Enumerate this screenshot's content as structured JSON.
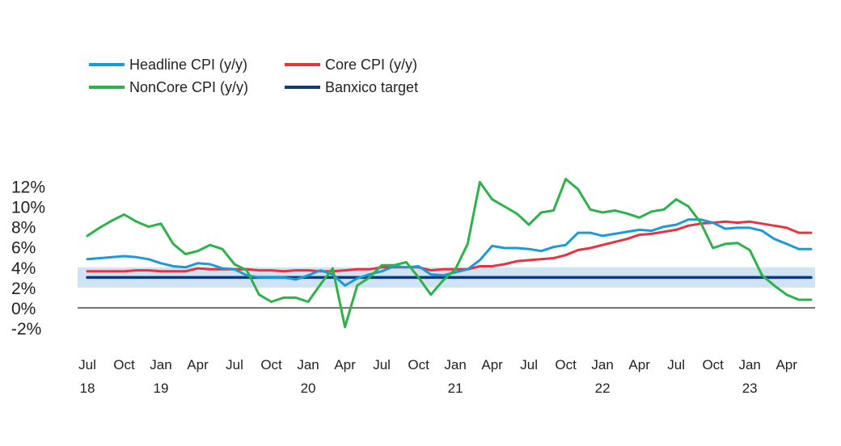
{
  "chart_data": {
    "type": "line",
    "title": "",
    "xlabel": "",
    "ylabel": "",
    "ylim": [
      -2,
      13
    ],
    "y_ticks": [
      "12%",
      "10%",
      "8%",
      "6%",
      "4%",
      "2%",
      "0%",
      "-2%"
    ],
    "x_tick_labels": [
      {
        "month": "Jul",
        "year": "18"
      },
      {
        "month": "Oct",
        "year": ""
      },
      {
        "month": "Jan",
        "year": "19"
      },
      {
        "month": "Apr",
        "year": ""
      },
      {
        "month": "Jul",
        "year": ""
      },
      {
        "month": "Oct",
        "year": ""
      },
      {
        "month": "Jan",
        "year": "20"
      },
      {
        "month": "Apr",
        "year": ""
      },
      {
        "month": "Jul",
        "year": ""
      },
      {
        "month": "Oct",
        "year": ""
      },
      {
        "month": "Jan",
        "year": "21"
      },
      {
        "month": "Apr",
        "year": ""
      },
      {
        "month": "Jul",
        "year": ""
      },
      {
        "month": "Oct",
        "year": ""
      },
      {
        "month": "Jan",
        "year": "22"
      },
      {
        "month": "Apr",
        "year": ""
      },
      {
        "month": "Jul",
        "year": ""
      },
      {
        "month": "Oct",
        "year": ""
      },
      {
        "month": "Jan",
        "year": "23"
      },
      {
        "month": "Apr",
        "year": ""
      }
    ],
    "x_dates": [
      "2018-07",
      "2018-08",
      "2018-09",
      "2018-10",
      "2018-11",
      "2018-12",
      "2019-01",
      "2019-02",
      "2019-03",
      "2019-04",
      "2019-05",
      "2019-06",
      "2019-07",
      "2019-08",
      "2019-09",
      "2019-10",
      "2019-11",
      "2019-12",
      "2020-01",
      "2020-02",
      "2020-03",
      "2020-04",
      "2020-05",
      "2020-06",
      "2020-07",
      "2020-08",
      "2020-09",
      "2020-10",
      "2020-11",
      "2020-12",
      "2021-01",
      "2021-02",
      "2021-03",
      "2021-04",
      "2021-05",
      "2021-06",
      "2021-07",
      "2021-08",
      "2021-09",
      "2021-10",
      "2021-11",
      "2021-12",
      "2022-01",
      "2022-02",
      "2022-03",
      "2022-04",
      "2022-05",
      "2022-06",
      "2022-07",
      "2022-08",
      "2022-09",
      "2022-10",
      "2022-11",
      "2022-12",
      "2023-01",
      "2023-02",
      "2023-03",
      "2023-04",
      "2023-05",
      "2023-06"
    ],
    "target_band": [
      2,
      4
    ],
    "target_line": 3,
    "series": [
      {
        "name": "Headline CPI (y/y)",
        "color": "#1a9ad6",
        "values": [
          4.8,
          4.9,
          5.0,
          5.1,
          5.0,
          4.8,
          4.4,
          4.1,
          4.0,
          4.4,
          4.3,
          3.9,
          3.8,
          3.2,
          3.0,
          3.0,
          3.0,
          2.8,
          3.2,
          3.7,
          3.3,
          2.2,
          2.9,
          3.3,
          3.6,
          4.1,
          4.0,
          4.1,
          3.3,
          3.2,
          3.5,
          3.8,
          4.7,
          6.1,
          5.9,
          5.9,
          5.8,
          5.6,
          6.0,
          6.2,
          7.4,
          7.4,
          7.1,
          7.3,
          7.5,
          7.7,
          7.6,
          8.0,
          8.2,
          8.7,
          8.7,
          8.4,
          7.8,
          7.9,
          7.9,
          7.6,
          6.8,
          6.3,
          5.8,
          5.8
        ]
      },
      {
        "name": "Core CPI (y/y)",
        "color": "#e8323f",
        "values": [
          3.6,
          3.6,
          3.6,
          3.6,
          3.7,
          3.7,
          3.6,
          3.6,
          3.6,
          3.9,
          3.8,
          3.8,
          3.8,
          3.8,
          3.7,
          3.7,
          3.6,
          3.7,
          3.7,
          3.6,
          3.6,
          3.7,
          3.8,
          3.8,
          4.0,
          4.0,
          4.0,
          4.0,
          3.7,
          3.8,
          3.8,
          3.8,
          4.1,
          4.1,
          4.3,
          4.6,
          4.7,
          4.8,
          4.9,
          5.2,
          5.7,
          5.9,
          6.2,
          6.5,
          6.8,
          7.2,
          7.3,
          7.5,
          7.7,
          8.1,
          8.3,
          8.4,
          8.5,
          8.4,
          8.5,
          8.3,
          8.1,
          7.9,
          7.4,
          7.4
        ]
      },
      {
        "name": "NonCore CPI (y/y)",
        "color": "#2db24a",
        "values": [
          7.1,
          7.9,
          8.6,
          9.2,
          8.5,
          8.0,
          8.3,
          6.3,
          5.3,
          5.6,
          6.2,
          5.8,
          4.3,
          3.7,
          1.3,
          0.6,
          1.0,
          1.0,
          0.6,
          2.3,
          3.9,
          -1.9,
          2.2,
          3.0,
          4.2,
          4.2,
          4.5,
          3.0,
          1.3,
          2.7,
          3.8,
          6.3,
          12.4,
          10.7,
          10.0,
          9.3,
          8.2,
          9.4,
          9.6,
          12.7,
          11.7,
          9.7,
          9.4,
          9.6,
          9.3,
          8.9,
          9.5,
          9.7,
          10.7,
          10.0,
          8.4,
          5.9,
          6.3,
          6.4,
          5.7,
          3.2,
          2.2,
          1.3,
          0.8,
          0.8
        ]
      },
      {
        "name": "Banxico target",
        "color": "#0d3b7a",
        "values": [
          3,
          3,
          3,
          3,
          3,
          3,
          3,
          3,
          3,
          3,
          3,
          3,
          3,
          3,
          3,
          3,
          3,
          3,
          3,
          3,
          3,
          3,
          3,
          3,
          3,
          3,
          3,
          3,
          3,
          3,
          3,
          3,
          3,
          3,
          3,
          3,
          3,
          3,
          3,
          3,
          3,
          3,
          3,
          3,
          3,
          3,
          3,
          3,
          3,
          3,
          3,
          3,
          3,
          3,
          3,
          3,
          3,
          3,
          3,
          3
        ]
      }
    ],
    "band_color": "#cfe3f5",
    "grid": false,
    "legend_position": "top-left"
  }
}
